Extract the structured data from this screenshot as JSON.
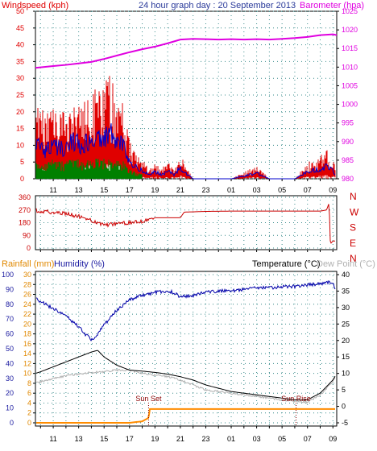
{
  "title": "24 hour graph day : 20 September 2013",
  "x_tick_labels": [
    "11",
    "13",
    "15",
    "17",
    "19",
    "21",
    "23",
    "01",
    "03",
    "05",
    "07",
    "09"
  ],
  "colors": {
    "wind": "#e00000",
    "gust_dark": "#0000cc",
    "wind_avg": "#008000",
    "barometer": "#e000e0",
    "direction": "#cc0000",
    "humidity": "#0000aa",
    "temperature": "#000000",
    "dew_point": "#b0b0b0",
    "rainfall": "#ff8c00",
    "grid": "#3a8c8c"
  },
  "chart_data": [
    {
      "type": "line",
      "panel": "wind",
      "title": "24 hour graph day : 20 September 2013",
      "ylabel_left": "Windspeed (kph)",
      "ylabel_right": "Barometer (hpa)",
      "yticks_left": [
        "50",
        "45",
        "40",
        "35",
        "30",
        "25",
        "20",
        "15",
        "10",
        "5",
        "0"
      ],
      "yticks_right": [
        "1025",
        "1020",
        "1015",
        "1010",
        "1005",
        "1000",
        "995",
        "990",
        "985",
        "980"
      ],
      "ylim_left": [
        0,
        50
      ],
      "ylim_right": [
        980,
        1025
      ],
      "grid": true,
      "barometer": {
        "x": [
          9.6,
          11,
          12,
          13,
          14,
          15,
          16,
          17,
          18,
          19,
          20,
          21,
          22,
          23,
          24,
          25,
          26,
          27,
          28,
          29,
          30,
          31,
          32,
          33,
          33.3
        ],
        "y": [
          1009.8,
          1010.3,
          1010.6,
          1011,
          1011.4,
          1012.2,
          1013.1,
          1014,
          1014.8,
          1015.5,
          1016.4,
          1017.4,
          1017.6,
          1017.5,
          1017.4,
          1017.5,
          1017.4,
          1017.5,
          1017.4,
          1017.6,
          1017.8,
          1018.1,
          1018.6,
          1018.8,
          1018.6
        ]
      },
      "wind_max_envelope": {
        "x": [
          9.6,
          10,
          10.5,
          11,
          11.5,
          12,
          12.5,
          13,
          13.5,
          14,
          14.5,
          15,
          15.5,
          16,
          16.5,
          17,
          17.5,
          18,
          18.5,
          19,
          19.5,
          20,
          20.5,
          21,
          21.4,
          22,
          23,
          24,
          25,
          26,
          26.5,
          27,
          28,
          29,
          30,
          31,
          31.5,
          32,
          32.5,
          33,
          33.3
        ],
        "y": [
          24,
          22,
          20,
          25,
          22,
          20,
          27,
          24,
          25,
          28,
          26,
          30,
          31,
          28,
          22,
          12,
          8,
          6,
          3,
          5,
          3,
          5,
          3,
          8,
          4,
          0,
          0,
          0,
          0,
          2,
          3,
          4,
          0,
          0,
          0,
          5,
          6,
          7,
          9,
          6,
          2
        ]
      }
    },
    {
      "type": "line",
      "panel": "wind_direction",
      "yticks": [
        "360",
        "270",
        "180",
        "90",
        "0"
      ],
      "ylim": [
        0,
        360
      ],
      "compass": [
        "N",
        "W",
        "S",
        "E",
        "N"
      ],
      "grid": true,
      "direction": {
        "x": [
          9.6,
          10,
          11,
          12,
          13,
          14,
          15,
          16,
          17,
          18,
          18.6,
          19,
          21,
          21.3,
          23,
          25,
          27,
          29,
          31,
          32,
          32.5,
          32.7,
          32.8,
          33,
          33.3
        ],
        "y": [
          270,
          260,
          255,
          245,
          225,
          195,
          165,
          170,
          180,
          190,
          200,
          215,
          215,
          255,
          260,
          262,
          262,
          262,
          262,
          262,
          270,
          320,
          30,
          50,
          50
        ]
      }
    },
    {
      "type": "line",
      "panel": "temperature",
      "ylabel_rain": "Rainfall (mm)",
      "ylabel_humidity": "Humidity (%)",
      "ylabel_temp": "Temperature (°C)",
      "ylabel_dew": "Dew Point (°C)",
      "yticks_humidity": [
        "100",
        "90",
        "80",
        "70",
        "60",
        "50",
        "40",
        "30",
        "20",
        "10",
        "0"
      ],
      "yticks_rain": [
        "30",
        "28",
        "26",
        "24",
        "22",
        "20",
        "18",
        "16",
        "14",
        "12",
        "10",
        "8",
        "6",
        "4",
        "2",
        "0"
      ],
      "yticks_temp": [
        "40",
        "35",
        "30",
        "25",
        "20",
        "15",
        "10",
        "5",
        "0",
        "-5"
      ],
      "ylim_humidity": [
        0,
        100
      ],
      "ylim_rain": [
        0,
        30
      ],
      "ylim_temp": [
        -5,
        40
      ],
      "annotations": [
        "Sun Set",
        "Sun Rise"
      ],
      "sun_set_x": 18.5,
      "sun_rise_x": 30.1,
      "grid": true,
      "humidity": {
        "x": [
          9.6,
          10,
          11,
          12,
          13,
          13.5,
          14,
          14.5,
          15,
          16,
          17,
          18,
          19,
          20,
          20.5,
          21,
          22,
          23,
          24,
          25,
          26,
          27,
          28,
          29,
          30,
          31,
          32,
          33,
          33.3
        ],
        "y": [
          84,
          82,
          77,
          72,
          65,
          60,
          56,
          60,
          66,
          76,
          83,
          86,
          88,
          89,
          88,
          85,
          86,
          88,
          89,
          89,
          90,
          91,
          91,
          92,
          92,
          93,
          94,
          95,
          88
        ]
      },
      "temperature": {
        "x": [
          9.6,
          10,
          11,
          12,
          13,
          14,
          14.5,
          15,
          16,
          17,
          18,
          19,
          20,
          21,
          22,
          23,
          24,
          25,
          26,
          27,
          28,
          29,
          30,
          30.5,
          31,
          32,
          33,
          33.3
        ],
        "y": [
          10,
          10.5,
          12,
          13.5,
          15,
          16.5,
          17,
          15,
          12.5,
          11,
          10.7,
          10.3,
          9.8,
          9,
          8,
          6.5,
          5.5,
          4.5,
          4,
          3.5,
          3,
          2.5,
          2,
          1.9,
          2,
          4,
          8,
          10
        ]
      },
      "dew_point": {
        "x": [
          9.6,
          10,
          11,
          12,
          13,
          14,
          15,
          16,
          17,
          18,
          19,
          20,
          21,
          22,
          23,
          24,
          25,
          26,
          27,
          28,
          29,
          30,
          31,
          32,
          33,
          33.3
        ],
        "y": [
          7,
          7.5,
          8.5,
          9.3,
          9.8,
          10.3,
          10.5,
          11,
          11,
          10,
          9.5,
          9,
          8,
          6.5,
          5,
          4.5,
          4,
          3.5,
          3,
          2.5,
          2,
          1.5,
          1.2,
          3.5,
          7.5,
          10
        ]
      },
      "rainfall": {
        "x": [
          9.6,
          17,
          18,
          18.5,
          18.6,
          19,
          21,
          23,
          25,
          27,
          29,
          31,
          33,
          33.2,
          33.3
        ],
        "y": [
          0,
          0,
          0.3,
          1,
          2.8,
          2.8,
          2.8,
          2.8,
          2.8,
          2.8,
          2.8,
          2.8,
          2.8,
          2.8,
          0
        ]
      }
    }
  ]
}
